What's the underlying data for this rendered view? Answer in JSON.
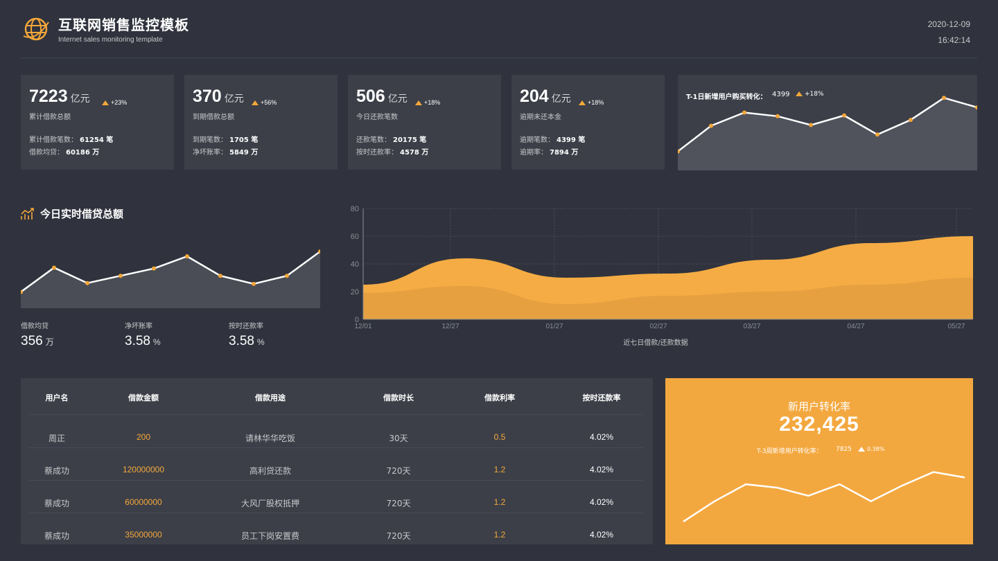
{
  "header": {
    "title": "互联网销售监控模板",
    "subtitle": "Internet sales monitoring template",
    "date": "2020-12-09",
    "time": "16:42:14"
  },
  "kpis": [
    {
      "value": "7223",
      "unit": "亿元",
      "change": "+23%",
      "label": "累计借款总额",
      "rows": [
        {
          "k": "累计借款笔数：",
          "v": "61254 笔"
        },
        {
          "k": "借款均贷：",
          "v": "60186 万"
        }
      ]
    },
    {
      "value": "370",
      "unit": "亿元",
      "change": "+56%",
      "label": "到期借款总额",
      "rows": [
        {
          "k": "到期笔数：",
          "v": "1705 笔"
        },
        {
          "k": "净坏账率：",
          "v": "5849 万"
        }
      ]
    },
    {
      "value": "506",
      "unit": "亿元",
      "change": "+18%",
      "label": "今日还款笔数",
      "rows": [
        {
          "k": "还款笔数：",
          "v": "20175 笔"
        },
        {
          "k": "按时还款率：",
          "v": "4578 万"
        }
      ]
    },
    {
      "value": "204",
      "unit": "亿元",
      "change": "+18%",
      "label": "逾期未还本金",
      "rows": [
        {
          "k": "逾期笔数：",
          "v": "4399 笔"
        },
        {
          "k": "逾期率：",
          "v": "7894 万"
        }
      ]
    }
  ],
  "kpi5": {
    "label": "T-1日新增用户购买转化：",
    "value": "4399",
    "change": "+18%"
  },
  "today": {
    "title": "今日实时借贷总额",
    "stats": [
      {
        "label": "借款均贷",
        "value": "356",
        "unit": "万"
      },
      {
        "label": "净坏账率",
        "value": "3.58",
        "unit": "%"
      },
      {
        "label": "按时还款率",
        "value": "3.58",
        "unit": "%"
      }
    ]
  },
  "table": {
    "headers": [
      "用户名",
      "借款金额",
      "借款用途",
      "借款时长",
      "借款利率",
      "按时还款率"
    ],
    "rows": [
      [
        "周正",
        "200",
        "请林华华吃饭",
        "30天",
        "0.5",
        "4.02%"
      ],
      [
        "蔡成功",
        "120000000",
        "高利贷还款",
        "720天",
        "1.2",
        "4.02%"
      ],
      [
        "蔡成功",
        "60000000",
        "大风厂股权抵押",
        "720天",
        "1.2",
        "4.02%"
      ],
      [
        "蔡成功",
        "35000000",
        "员工下岗安置费",
        "720天",
        "1.2",
        "4.02%"
      ]
    ]
  },
  "conversion": {
    "title": "新用户转化率",
    "value": "232,425",
    "sub_label": "T-3周新增用户转化率：",
    "sub_value": "7825",
    "sub_change": "0.38%"
  },
  "colors": {
    "accent": "#f5a83a",
    "panel": "#3c3f48",
    "background": "#30333d"
  },
  "chart_data": [
    {
      "type": "line",
      "values": [
        22,
        57,
        75,
        70,
        58,
        71,
        45,
        65,
        95,
        82
      ]
    },
    {
      "type": "line",
      "values": [
        20,
        50,
        31,
        40,
        49,
        64,
        40,
        30,
        40,
        70
      ]
    },
    {
      "type": "area",
      "title": "",
      "xlabel": "近七日借款/还款数据",
      "ylabel": "",
      "ylim": [
        0,
        80
      ],
      "yticks": [
        "0",
        "20",
        "40",
        "60",
        "80"
      ],
      "xticks": [
        "12/01",
        "12/27",
        "01/27",
        "02/27",
        "03/27",
        "04/27",
        "05/27"
      ],
      "grid": true,
      "series": [
        {
          "values": [
            25,
            44,
            30,
            33,
            43,
            55,
            60
          ]
        },
        {
          "values": [
            19,
            24,
            11,
            17,
            20,
            25,
            30
          ]
        }
      ]
    },
    {
      "type": "line",
      "values": [
        5,
        35,
        60,
        55,
        43,
        60,
        35,
        58,
        78,
        70
      ]
    }
  ]
}
